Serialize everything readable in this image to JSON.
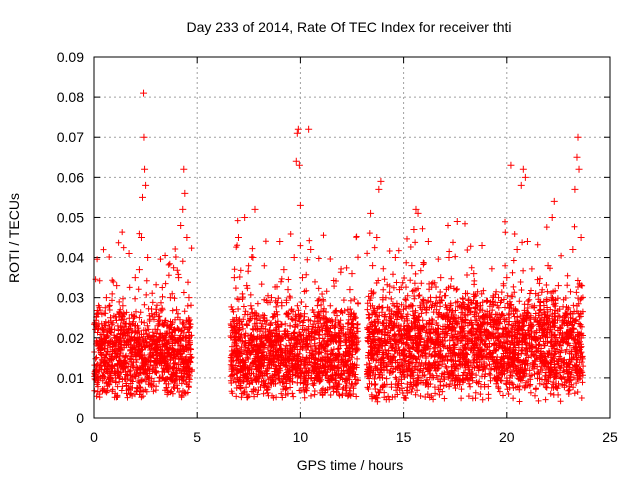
{
  "chart_data": {
    "type": "scatter",
    "title": "Day 233 of 2014, Rate Of TEC Index for receiver thti",
    "xlabel": "GPS time / hours",
    "ylabel": "ROTI / TECUs",
    "xlim": [
      0,
      25
    ],
    "ylim": [
      0,
      0.09
    ],
    "grid": true,
    "marker": "+",
    "color": "#ff0000",
    "x_ticks": [
      {
        "value": 0,
        "label": "0"
      },
      {
        "value": 5,
        "label": "5"
      },
      {
        "value": 10,
        "label": "10"
      },
      {
        "value": 15,
        "label": "15"
      },
      {
        "value": 20,
        "label": "20"
      },
      {
        "value": 25,
        "label": "25"
      }
    ],
    "y_ticks": [
      {
        "value": 0,
        "label": "0"
      },
      {
        "value": 0.01,
        "label": "0.01"
      },
      {
        "value": 0.02,
        "label": "0.02"
      },
      {
        "value": 0.03,
        "label": "0.03"
      },
      {
        "value": 0.04,
        "label": "0.04"
      },
      {
        "value": 0.05,
        "label": "0.05"
      },
      {
        "value": 0.06,
        "label": "0.06"
      },
      {
        "value": 0.07,
        "label": "0.07"
      },
      {
        "value": 0.08,
        "label": "0.08"
      },
      {
        "value": 0.09,
        "label": "0.09"
      }
    ],
    "series": [
      {
        "name": "ROTI",
        "points": [
          [
            0.1,
            0.012
          ],
          [
            0.2,
            0.018
          ],
          [
            0.3,
            0.01
          ],
          [
            0.4,
            0.022
          ],
          [
            0.5,
            0.015
          ],
          [
            0.6,
            0.03
          ],
          [
            0.7,
            0.009
          ],
          [
            0.8,
            0.025
          ],
          [
            0.9,
            0.013
          ],
          [
            1.0,
            0.02
          ],
          [
            1.1,
            0.033
          ],
          [
            1.2,
            0.011
          ],
          [
            1.3,
            0.017
          ],
          [
            1.4,
            0.028
          ],
          [
            1.5,
            0.014
          ],
          [
            1.6,
            0.021
          ],
          [
            1.7,
            0.041
          ],
          [
            1.8,
            0.016
          ],
          [
            1.9,
            0.024
          ],
          [
            2.0,
            0.035
          ],
          [
            2.1,
            0.012
          ],
          [
            2.2,
            0.037
          ],
          [
            2.3,
            0.045
          ],
          [
            2.35,
            0.055
          ],
          [
            2.4,
            0.081
          ],
          [
            2.42,
            0.07
          ],
          [
            2.45,
            0.062
          ],
          [
            2.5,
            0.058
          ],
          [
            2.6,
            0.04
          ],
          [
            2.7,
            0.018
          ],
          [
            2.8,
            0.026
          ],
          [
            2.9,
            0.013
          ],
          [
            3.0,
            0.019
          ],
          [
            3.1,
            0.023
          ],
          [
            3.2,
            0.01
          ],
          [
            3.3,
            0.027
          ],
          [
            3.4,
            0.016
          ],
          [
            3.5,
            0.021
          ],
          [
            3.6,
            0.012
          ],
          [
            3.7,
            0.03
          ],
          [
            3.8,
            0.018
          ],
          [
            3.9,
            0.022
          ],
          [
            4.0,
            0.027
          ],
          [
            4.1,
            0.035
          ],
          [
            4.2,
            0.048
          ],
          [
            4.3,
            0.052
          ],
          [
            4.35,
            0.062
          ],
          [
            4.4,
            0.056
          ],
          [
            4.5,
            0.045
          ],
          [
            4.6,
            0.03
          ],
          [
            6.7,
            0.015
          ],
          [
            6.8,
            0.035
          ],
          [
            6.9,
            0.025
          ],
          [
            7.0,
            0.045
          ],
          [
            7.1,
            0.02
          ],
          [
            7.2,
            0.012
          ],
          [
            7.3,
            0.05
          ],
          [
            7.4,
            0.033
          ],
          [
            7.5,
            0.018
          ],
          [
            7.6,
            0.028
          ],
          [
            7.7,
            0.04
          ],
          [
            7.8,
            0.052
          ],
          [
            7.9,
            0.022
          ],
          [
            8.0,
            0.014
          ],
          [
            8.2,
            0.025
          ],
          [
            8.4,
            0.011
          ],
          [
            8.6,
            0.03
          ],
          [
            8.8,
            0.019
          ],
          [
            9.0,
            0.044
          ],
          [
            9.1,
            0.028
          ],
          [
            9.2,
            0.037
          ],
          [
            9.3,
            0.015
          ],
          [
            9.4,
            0.032
          ],
          [
            9.5,
            0.023
          ],
          [
            9.6,
            0.017
          ],
          [
            9.7,
            0.04
          ],
          [
            9.8,
            0.064
          ],
          [
            9.85,
            0.071
          ],
          [
            9.9,
            0.072
          ],
          [
            9.95,
            0.063
          ],
          [
            10.0,
            0.053
          ],
          [
            10.1,
            0.035
          ],
          [
            10.2,
            0.026
          ],
          [
            10.4,
            0.072
          ],
          [
            10.5,
            0.042
          ],
          [
            10.7,
            0.018
          ],
          [
            10.9,
            0.025
          ],
          [
            11.1,
            0.013
          ],
          [
            11.3,
            0.021
          ],
          [
            11.5,
            0.016
          ],
          [
            11.7,
            0.01
          ],
          [
            11.9,
            0.019
          ],
          [
            12.1,
            0.014
          ],
          [
            12.3,
            0.027
          ],
          [
            12.4,
            0.032
          ],
          [
            12.5,
            0.036
          ],
          [
            12.6,
            0.02
          ],
          [
            13.3,
            0.015
          ],
          [
            13.4,
            0.051
          ],
          [
            13.5,
            0.038
          ],
          [
            13.6,
            0.022
          ],
          [
            13.7,
            0.045
          ],
          [
            13.8,
            0.057
          ],
          [
            13.9,
            0.059
          ],
          [
            14.0,
            0.03
          ],
          [
            14.1,
            0.019
          ],
          [
            14.2,
            0.012
          ],
          [
            14.4,
            0.026
          ],
          [
            14.6,
            0.04
          ],
          [
            14.8,
            0.032
          ],
          [
            15.0,
            0.017
          ],
          [
            15.2,
            0.022
          ],
          [
            15.4,
            0.038
          ],
          [
            15.5,
            0.047
          ],
          [
            15.6,
            0.052
          ],
          [
            15.7,
            0.051
          ],
          [
            15.8,
            0.028
          ],
          [
            16.0,
            0.019
          ],
          [
            16.2,
            0.044
          ],
          [
            16.4,
            0.013
          ],
          [
            16.6,
            0.027
          ],
          [
            16.8,
            0.035
          ],
          [
            17.0,
            0.021
          ],
          [
            17.2,
            0.04
          ],
          [
            17.4,
            0.016
          ],
          [
            17.6,
            0.049
          ],
          [
            17.8,
            0.024
          ],
          [
            18.0,
            0.031
          ],
          [
            18.2,
            0.012
          ],
          [
            18.4,
            0.036
          ],
          [
            18.6,
            0.02
          ],
          [
            18.8,
            0.043
          ],
          [
            19.0,
            0.017
          ],
          [
            19.2,
            0.025
          ],
          [
            19.4,
            0.01
          ],
          [
            19.6,
            0.03
          ],
          [
            19.8,
            0.018
          ],
          [
            20.0,
            0.035
          ],
          [
            20.2,
            0.063
          ],
          [
            20.4,
            0.024
          ],
          [
            20.5,
            0.042
          ],
          [
            20.7,
            0.058
          ],
          [
            20.8,
            0.062
          ],
          [
            20.9,
            0.06
          ],
          [
            21.0,
            0.044
          ],
          [
            21.2,
            0.02
          ],
          [
            21.4,
            0.031
          ],
          [
            21.6,
            0.015
          ],
          [
            21.8,
            0.027
          ],
          [
            22.0,
            0.038
          ],
          [
            22.2,
            0.05
          ],
          [
            22.3,
            0.054
          ],
          [
            22.5,
            0.033
          ],
          [
            22.7,
            0.021
          ],
          [
            22.9,
            0.012
          ],
          [
            23.1,
            0.026
          ],
          [
            23.2,
            0.042
          ],
          [
            23.3,
            0.057
          ],
          [
            23.4,
            0.065
          ],
          [
            23.45,
            0.07
          ],
          [
            23.5,
            0.062
          ],
          [
            23.6,
            0.045
          ]
        ]
      }
    ],
    "point_clouds": [
      {
        "x_start": 0.0,
        "x_end": 4.75,
        "baseline": 0.014,
        "spread": 0.009,
        "min": 0.005,
        "count": 1100
      },
      {
        "x_start": 6.6,
        "x_end": 12.8,
        "baseline": 0.014,
        "spread": 0.01,
        "min": 0.005,
        "count": 1500
      },
      {
        "x_start": 13.2,
        "x_end": 23.7,
        "baseline": 0.016,
        "spread": 0.011,
        "min": 0.004,
        "count": 2500
      }
    ]
  }
}
